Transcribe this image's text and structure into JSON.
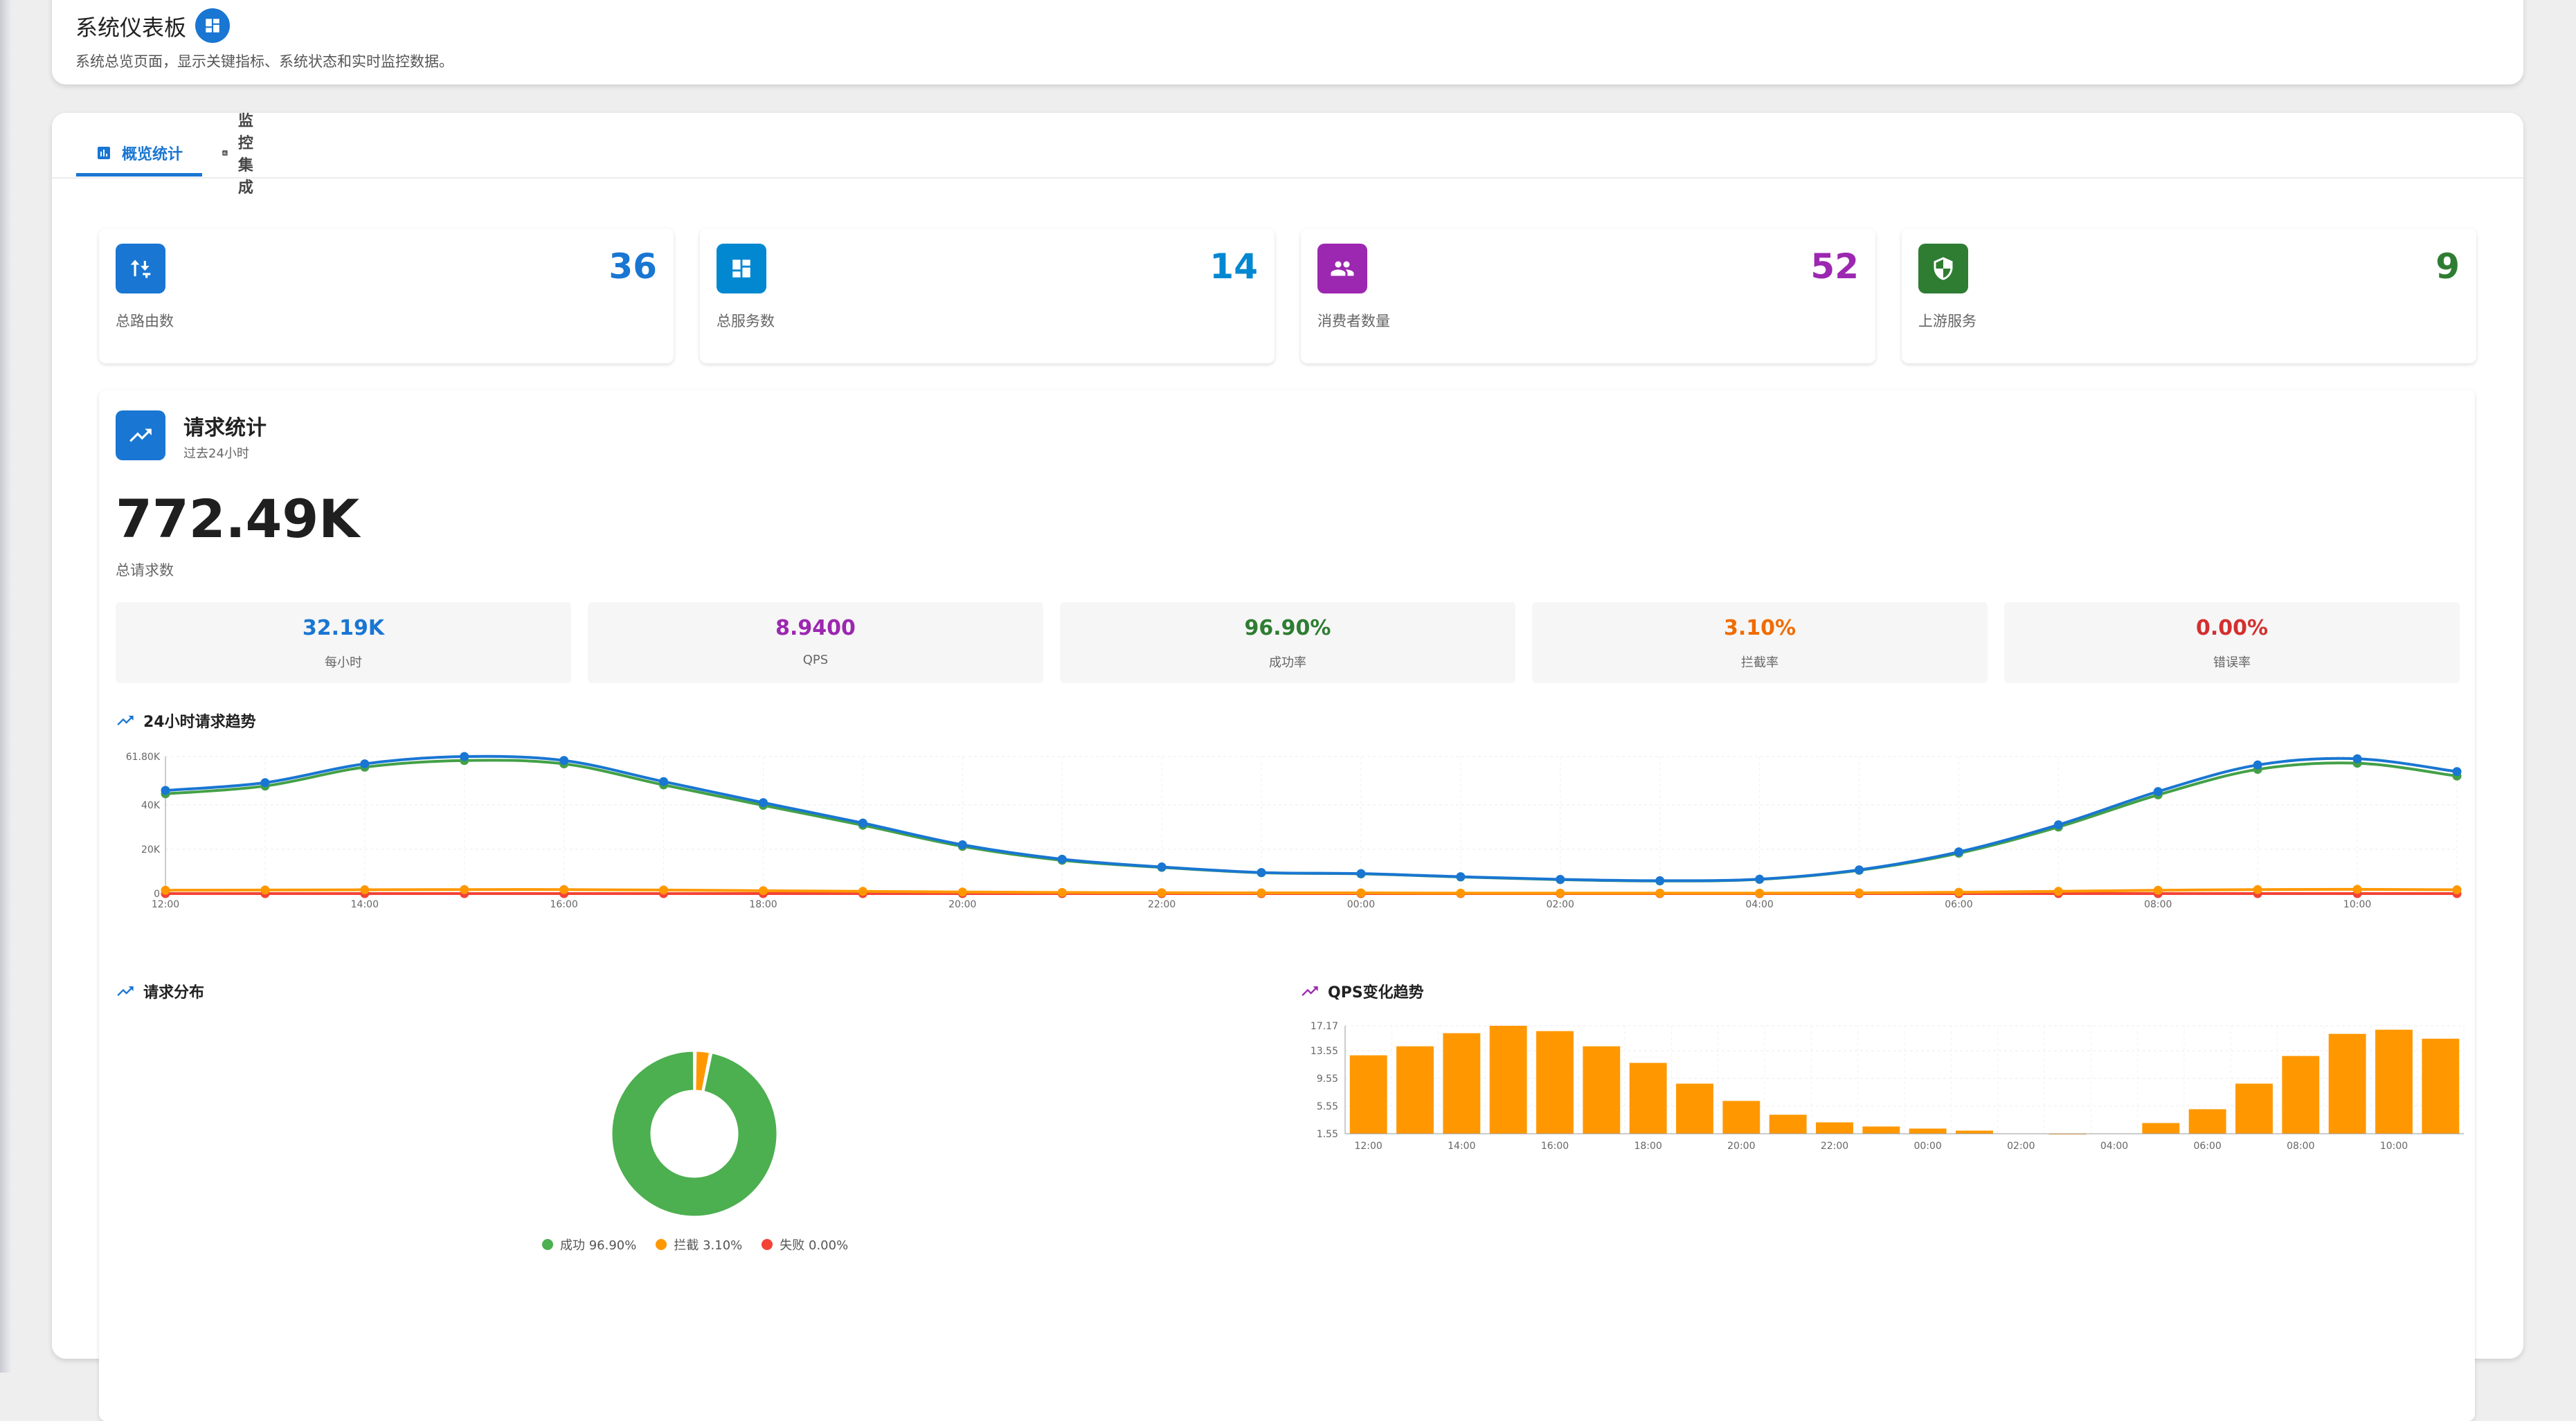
{
  "header": {
    "title": "系统仪表板",
    "subtitle": "系统总览页面，显示关键指标、系统状态和实时监控数据。",
    "title_icon": "dashboard-icon"
  },
  "tabs": [
    {
      "label": "概览统计",
      "icon": "bar-chart-icon",
      "active": true
    },
    {
      "label": "监控集成",
      "icon": "bar-chart-icon",
      "active": false
    }
  ],
  "stats": [
    {
      "value": "36",
      "label": "总路由数",
      "icon": "route-icon",
      "color": "#1976d2"
    },
    {
      "value": "14",
      "label": "总服务数",
      "icon": "dashboard-icon",
      "color": "#0288d1"
    },
    {
      "value": "52",
      "label": "消费者数量",
      "icon": "people-icon",
      "color": "#9c27b0"
    },
    {
      "value": "9",
      "label": "上游服务",
      "icon": "shield-icon",
      "color": "#2e7d32"
    }
  ],
  "requests": {
    "title": "请求统计",
    "subtitle": "过去24小时",
    "total": "772.49K",
    "total_label": "总请求数",
    "metrics": [
      {
        "value": "32.19K",
        "label": "每小时",
        "color": "#1976d2"
      },
      {
        "value": "8.9400",
        "label": "QPS",
        "color": "#9c27b0"
      },
      {
        "value": "96.90%",
        "label": "成功率",
        "color": "#2e7d32"
      },
      {
        "value": "3.10%",
        "label": "拦截率",
        "color": "#ef6c00"
      },
      {
        "value": "0.00%",
        "label": "错误率",
        "color": "#d32f2f"
      }
    ]
  },
  "chart_data": [
    {
      "type": "line",
      "title": "24小时请求趋势",
      "x": [
        "12:00",
        "13:00",
        "14:00",
        "15:00",
        "16:00",
        "17:00",
        "18:00",
        "19:00",
        "20:00",
        "21:00",
        "22:00",
        "23:00",
        "00:00",
        "01:00",
        "02:00",
        "03:00",
        "04:00",
        "05:00",
        "06:00",
        "07:00",
        "08:00",
        "09:00",
        "10:00",
        "11:00"
      ],
      "x_tick_labels": [
        "12:00",
        "14:00",
        "16:00",
        "18:00",
        "20:00",
        "22:00",
        "00:00",
        "02:00",
        "04:00",
        "06:00",
        "08:00",
        "10:00"
      ],
      "y_tick_labels": [
        "0",
        "20K",
        "40K",
        "61.80K"
      ],
      "ylim": [
        0,
        61800
      ],
      "grid": true,
      "series": [
        {
          "color": "#1976d2",
          "values": [
            46500,
            50000,
            58500,
            61800,
            60000,
            50500,
            41000,
            31800,
            22000,
            15500,
            12000,
            9500,
            9000,
            7600,
            6400,
            5800,
            6500,
            10700,
            18800,
            31000,
            46000,
            58000,
            60800,
            55000
          ]
        },
        {
          "color": "#43a047",
          "values": [
            45000,
            48500,
            57000,
            60000,
            58500,
            49000,
            39800,
            30800,
            21300,
            15000,
            11800,
            9400,
            8900,
            7500,
            6300,
            5700,
            6400,
            10500,
            18200,
            30000,
            44500,
            56000,
            58800,
            53000
          ]
        },
        {
          "color": "#ff9800",
          "values": [
            1500,
            1600,
            1700,
            1800,
            1800,
            1600,
            1300,
            1000,
            700,
            500,
            400,
            300,
            300,
            200,
            200,
            200,
            200,
            300,
            600,
            1000,
            1500,
            1800,
            1900,
            1700
          ]
        },
        {
          "color": "#f44336",
          "values": [
            0,
            0,
            0,
            0,
            0,
            0,
            0,
            0,
            0,
            0,
            0,
            0,
            0,
            0,
            0,
            0,
            0,
            0,
            0,
            0,
            0,
            0,
            0,
            0
          ]
        }
      ]
    },
    {
      "type": "pie",
      "title": "请求分布",
      "categories": [
        "成功",
        "拦截",
        "失败"
      ],
      "values": [
        96.9,
        3.1,
        0.0
      ],
      "colors": [
        "#4caf50",
        "#ff9800",
        "#f44336"
      ],
      "legend_labels": [
        "成功 96.90%",
        "拦截 3.10%",
        "失败 0.00%"
      ],
      "legend": "bottom"
    },
    {
      "type": "bar",
      "title": "QPS变化趋势",
      "categories": [
        "12:00",
        "13:00",
        "14:00",
        "15:00",
        "16:00",
        "17:00",
        "18:00",
        "19:00",
        "20:00",
        "21:00",
        "22:00",
        "23:00",
        "00:00",
        "01:00",
        "02:00",
        "03:00",
        "04:00",
        "05:00",
        "06:00",
        "07:00",
        "08:00",
        "09:00",
        "10:00",
        "11:00"
      ],
      "x_tick_labels": [
        "12:00",
        "14:00",
        "16:00",
        "18:00",
        "20:00",
        "22:00",
        "00:00",
        "02:00",
        "04:00",
        "06:00",
        "08:00",
        "10:00"
      ],
      "y_tick_labels": [
        "1.55",
        "5.55",
        "9.55",
        "13.55",
        "17.17"
      ],
      "values": [
        12.9,
        14.2,
        16.1,
        17.17,
        16.4,
        14.2,
        11.8,
        8.8,
        6.3,
        4.3,
        3.2,
        2.6,
        2.3,
        2.0,
        1.6,
        1.5,
        1.6,
        3.1,
        5.1,
        8.8,
        12.8,
        16.0,
        16.6,
        15.3
      ],
      "ylim": [
        1.55,
        17.17
      ],
      "grid": true,
      "color": "#ff9800"
    }
  ]
}
